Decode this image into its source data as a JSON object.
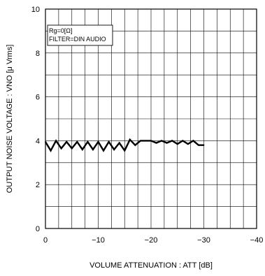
{
  "chart_data": {
    "type": "line",
    "title": "",
    "xlabel": "VOLUME ATTENUATION : ATT [dB]",
    "ylabel": "OUTPUT NOISE VOLTAGE : VNO [μ Vrms]",
    "xlim": [
      0,
      -40
    ],
    "ylim": [
      0,
      10
    ],
    "x_ticks": [
      0,
      -10,
      -20,
      -30,
      -40
    ],
    "x_tick_labels": [
      "0",
      "−10",
      "−20",
      "−30",
      "−40"
    ],
    "y_ticks": [
      0,
      2,
      4,
      6,
      8,
      10
    ],
    "y_tick_labels": [
      "0",
      "2",
      "4",
      "6",
      "8",
      "10"
    ],
    "grid": true,
    "annotations": [
      "Rg=0[Ω]",
      "FILTER=DIN AUDIO"
    ],
    "series": [
      {
        "x": [
          0,
          -1,
          -2,
          -3,
          -4,
          -5,
          -6,
          -7,
          -8,
          -9,
          -10,
          -11,
          -12,
          -13,
          -14,
          -15,
          -16,
          -17,
          -18,
          -19,
          -20,
          -21,
          -22,
          -23,
          -24,
          -25,
          -26,
          -27,
          -28,
          -29,
          -30
        ],
        "values": [
          3.95,
          3.55,
          4.0,
          3.65,
          3.95,
          3.65,
          3.95,
          3.6,
          3.95,
          3.6,
          3.95,
          3.55,
          3.95,
          3.6,
          3.9,
          3.55,
          4.05,
          3.8,
          4.0,
          4.0,
          4.0,
          3.9,
          4.0,
          3.9,
          4.0,
          3.85,
          4.0,
          3.85,
          4.0,
          3.8,
          3.8
        ]
      }
    ]
  }
}
